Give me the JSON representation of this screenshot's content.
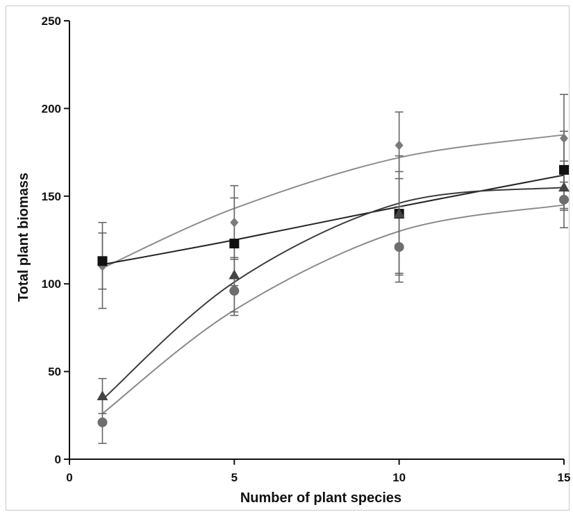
{
  "chart_data": {
    "type": "scatter",
    "xlabel": "Number of plant species",
    "ylabel": "Total plant biomass",
    "xlim": [
      0,
      15
    ],
    "ylim": [
      0,
      250
    ],
    "xticks": [
      0,
      5,
      10,
      15
    ],
    "yticks": [
      0,
      50,
      100,
      150,
      200,
      250
    ],
    "grid": false,
    "legend": "none",
    "series": [
      {
        "marker": "diamond",
        "color": "#7a7a7a",
        "line_color": "#8c8c8c",
        "x": [
          1,
          5,
          10,
          15
        ],
        "y": [
          110,
          135,
          179,
          183
        ],
        "err_low": [
          86,
          114,
          160,
          158
        ],
        "err_high": [
          135,
          156,
          198,
          208
        ],
        "fit": [
          109,
          143,
          172,
          185
        ]
      },
      {
        "marker": "square",
        "color": "#111111",
        "line_color": "#222222",
        "x": [
          1,
          5,
          10,
          15
        ],
        "y": [
          113,
          123,
          140,
          165
        ],
        "err_low": [
          97,
          99,
          106,
          142
        ],
        "err_high": [
          129,
          149,
          173,
          187
        ],
        "fit": [
          111,
          125,
          144,
          162
        ]
      },
      {
        "marker": "triangle",
        "color": "#444444",
        "line_color": "#3a3a3a",
        "x": [
          1,
          5,
          10,
          15
        ],
        "y": [
          36,
          105,
          140,
          155
        ],
        "err_low": [
          26,
          84,
          105,
          143
        ],
        "err_high": [
          46,
          125,
          164,
          170
        ],
        "fit": [
          34,
          101,
          146,
          155
        ]
      },
      {
        "marker": "circle",
        "color": "#6e6e6e",
        "line_color": "#8a8a8a",
        "x": [
          1,
          5,
          10,
          15
        ],
        "y": [
          21,
          96,
          121,
          148
        ],
        "err_low": [
          9,
          82,
          101,
          132
        ],
        "err_high": [
          34,
          115,
          144,
          164
        ],
        "fit": [
          26,
          85,
          130,
          145
        ]
      }
    ]
  }
}
